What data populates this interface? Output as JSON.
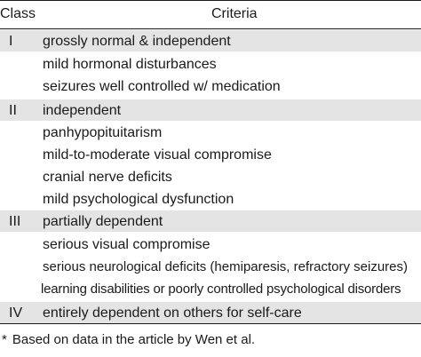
{
  "header": {
    "class_label": "Class",
    "criteria_label": "Criteria"
  },
  "rows": [
    {
      "class": "I",
      "criteria": "grossly normal & independent"
    },
    {
      "class": "",
      "criteria": "mild hormonal disturbances"
    },
    {
      "class": "",
      "criteria": "seizures well controlled w/ medication"
    },
    {
      "class": "II",
      "criteria": "independent"
    },
    {
      "class": "",
      "criteria": "panhypopituitarism"
    },
    {
      "class": "",
      "criteria": "mild-to-moderate visual compromise"
    },
    {
      "class": "",
      "criteria": "cranial nerve deficits"
    },
    {
      "class": "",
      "criteria": "mild psychological dysfunction"
    },
    {
      "class": "III",
      "criteria": "partially dependent"
    },
    {
      "class": "",
      "criteria": "serious visual compromise"
    },
    {
      "class": "",
      "criteria": "serious neurological deficits (hemiparesis, refractory seizures)"
    },
    {
      "class": "",
      "criteria": "learning disabilities or poorly controlled psychological disorders"
    },
    {
      "class": "IV",
      "criteria": "entirely dependent on others for self-care"
    }
  ],
  "footnote": {
    "mark": "*",
    "text": "Based on data in the article by Wen et al."
  },
  "colors": {
    "band": "#e4e4e4",
    "text": "#1a1a1a"
  }
}
